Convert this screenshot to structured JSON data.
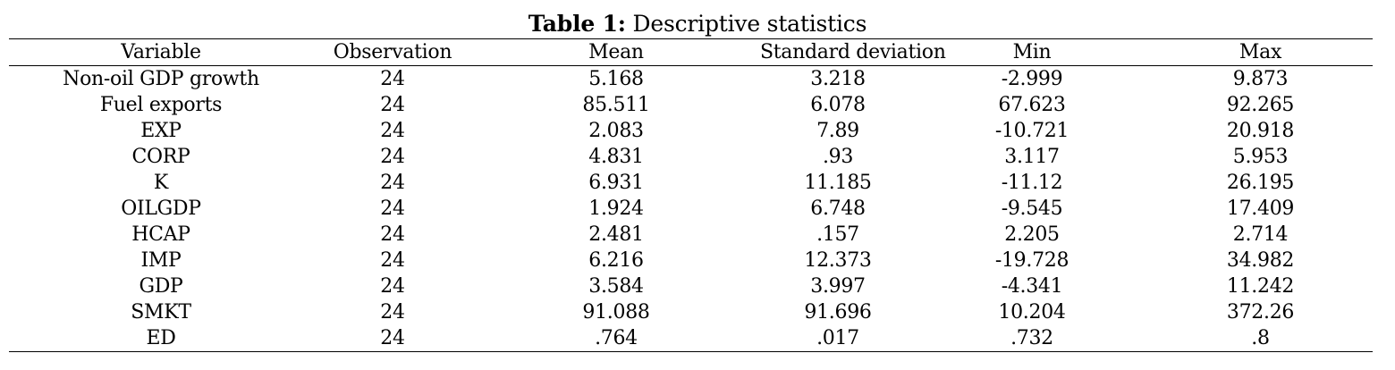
{
  "caption": {
    "label": "Table 1:",
    "text": " Descriptive statistics"
  },
  "table": {
    "columns": [
      "Variable",
      "Observation",
      "Mean",
      "Standard deviation",
      "Min",
      "Max"
    ],
    "rows": [
      [
        "Non-oil GDP growth",
        "24",
        "5.168",
        "3.218",
        "-2.999",
        "9.873"
      ],
      [
        "Fuel exports",
        "24",
        "85.511",
        "6.078",
        "67.623",
        "92.265"
      ],
      [
        "EXP",
        "24",
        "2.083",
        "7.89",
        "-10.721",
        "20.918"
      ],
      [
        "CORP",
        "24",
        "4.831",
        ".93",
        "3.117",
        "5.953"
      ],
      [
        "K",
        "24",
        "6.931",
        "11.185",
        "-11.12",
        "26.195"
      ],
      [
        "OILGDP",
        "24",
        "1.924",
        "6.748",
        "-9.545",
        "17.409"
      ],
      [
        "HCAP",
        "24",
        "2.481",
        ".157",
        "2.205",
        "2.714"
      ],
      [
        "IMP",
        "24",
        "6.216",
        "12.373",
        "-19.728",
        "34.982"
      ],
      [
        "GDP",
        "24",
        "3.584",
        "3.997",
        "-4.341",
        "11.242"
      ],
      [
        "SMKT",
        "24",
        "91.088",
        "91.696",
        "10.204",
        "372.26"
      ],
      [
        "ED",
        "24",
        ".764",
        ".017",
        ".732",
        ".8"
      ]
    ]
  }
}
